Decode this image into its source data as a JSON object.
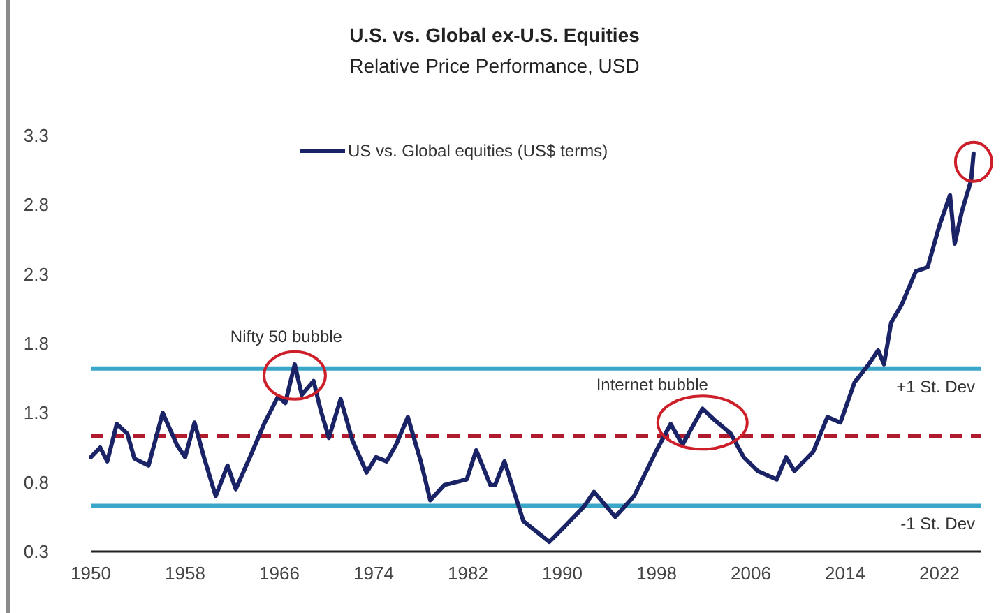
{
  "chart_data": {
    "type": "line",
    "title": "U.S. vs. Global ex-U.S. Equities",
    "subtitle": "Relative Price Performance, USD",
    "xlim": [
      1950,
      2025.5
    ],
    "xticks": [
      1950,
      1958,
      1966,
      1974,
      1982,
      1990,
      1998,
      2006,
      2014,
      2022
    ],
    "ylim": [
      0.3,
      3.3
    ],
    "yticks": [
      0.3,
      0.8,
      1.3,
      1.8,
      2.3,
      2.8,
      3.3
    ],
    "grid": false,
    "legend": "top left",
    "marker": "none",
    "line_style": "solid",
    "series": [
      {
        "name": "US vs. Global equities (US$ terms)",
        "color": "#1a2366",
        "x": [
          1950,
          1950.8,
          1951.4,
          1952.2,
          1953.1,
          1953.7,
          1954.9,
          1956.1,
          1957.3,
          1958,
          1958.8,
          1959.6,
          1960.6,
          1961.6,
          1962.3,
          1963.5,
          1964.7,
          1965.9,
          1966.5,
          1967.3,
          1967.9,
          1968.9,
          1969.5,
          1970.2,
          1971.2,
          1972.2,
          1973.4,
          1974.2,
          1975.1,
          1975.9,
          1976.9,
          1978,
          1978.8,
          1980,
          1981.9,
          1982.7,
          1983.9,
          1984.3,
          1985.1,
          1986.7,
          1988.9,
          1990.2,
          1991.8,
          1992.7,
          1994.5,
          1996.1,
          1998,
          1999.2,
          2000.2,
          2001.9,
          2002.9,
          2004.3,
          2005.4,
          2006.6,
          2008.2,
          2009,
          2009.7,
          2011.3,
          2012.5,
          2013.6,
          2014.8,
          2016,
          2016.8,
          2017.3,
          2017.9,
          2018.8,
          2020,
          2021,
          2022,
          2022.9,
          2023.3,
          2023.9,
          2024.7,
          2024.9
        ],
        "values": [
          0.98,
          1.05,
          0.95,
          1.22,
          1.15,
          0.97,
          0.92,
          1.3,
          1.07,
          0.98,
          1.23,
          0.98,
          0.7,
          0.92,
          0.75,
          0.98,
          1.22,
          1.42,
          1.37,
          1.65,
          1.43,
          1.53,
          1.32,
          1.12,
          1.4,
          1.1,
          0.87,
          0.98,
          0.95,
          1.07,
          1.27,
          0.95,
          0.67,
          0.78,
          0.82,
          1.03,
          0.78,
          0.78,
          0.95,
          0.52,
          0.37,
          0.48,
          0.62,
          0.73,
          0.55,
          0.7,
          1.03,
          1.22,
          1.07,
          1.33,
          1.25,
          1.15,
          0.98,
          0.88,
          0.82,
          0.98,
          0.88,
          1.02,
          1.27,
          1.23,
          1.52,
          1.65,
          1.75,
          1.65,
          1.95,
          2.08,
          2.32,
          2.35,
          2.65,
          2.87,
          2.52,
          2.75,
          2.98,
          3.17
        ]
      }
    ],
    "ref_lines": [
      {
        "axis": "y",
        "value": 1.62,
        "label": "+1 St. Dev",
        "color": "#3aa6c8",
        "line_style": "solid"
      },
      {
        "axis": "y",
        "value": 1.13,
        "label": null,
        "color": "#b01c2e",
        "line_style": "dashed"
      },
      {
        "axis": "y",
        "value": 0.63,
        "label": "-1 St. Dev",
        "color": "#3aa6c8",
        "line_style": "solid"
      }
    ],
    "annotations": [
      {
        "text": "Nifty 50 bubble",
        "x": 1967.3,
        "y": 1.65
      },
      {
        "text": "Internet bubble",
        "x": 2001.9,
        "y": 1.33
      }
    ]
  }
}
